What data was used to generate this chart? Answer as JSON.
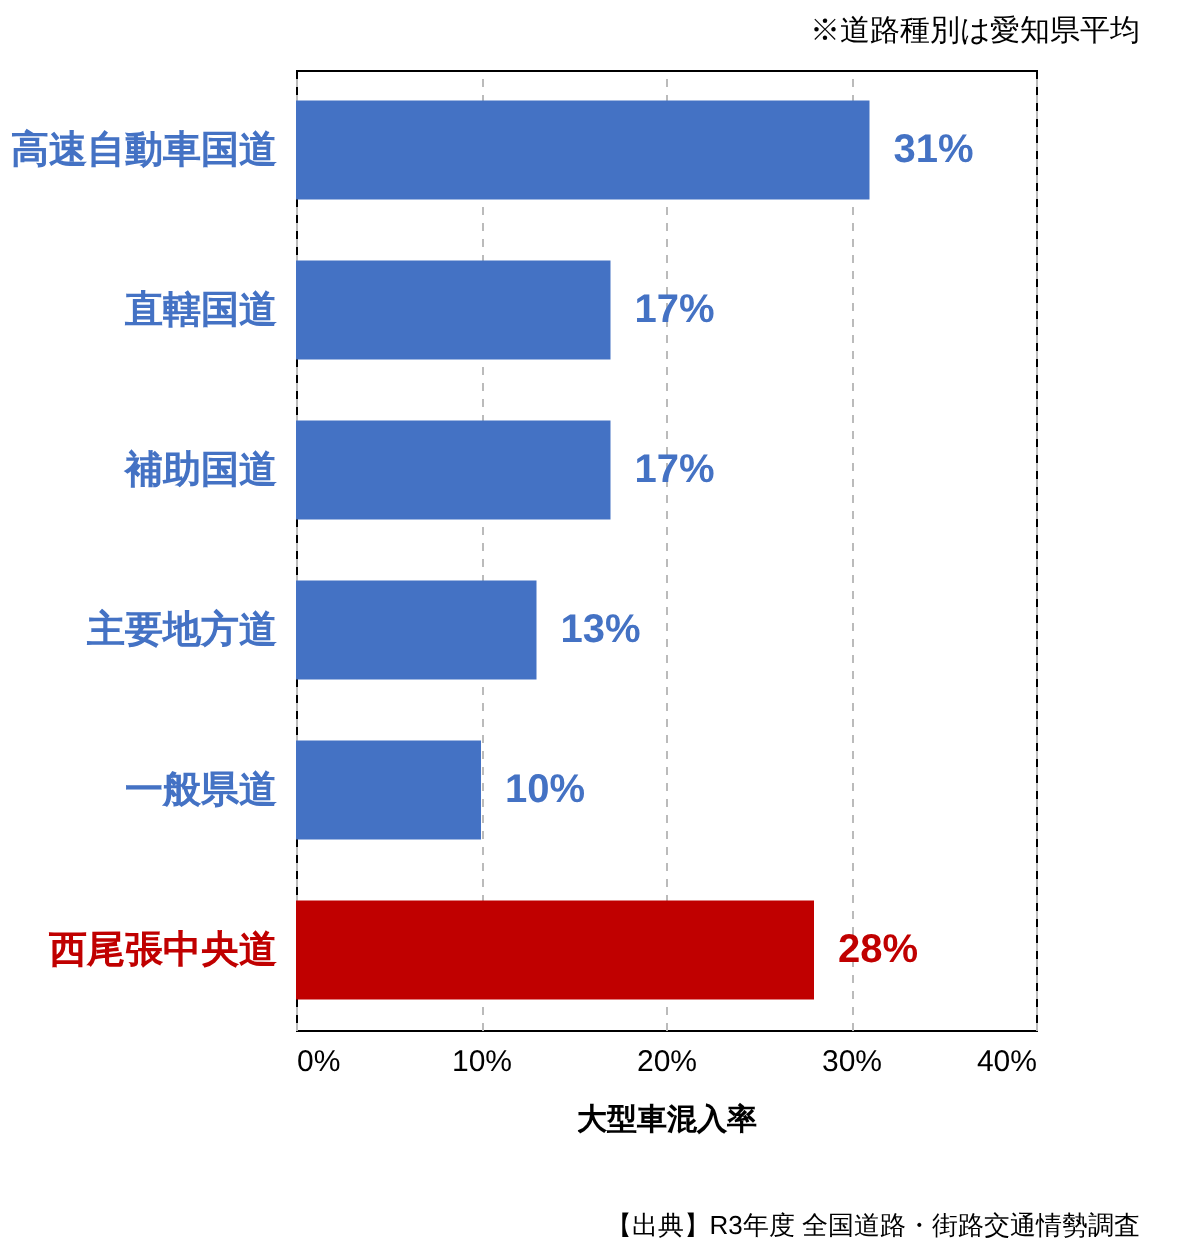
{
  "chart_data": {
    "type": "bar",
    "orientation": "horizontal",
    "xlabel": "大型車混入率",
    "categories": [
      "高速自動車国道",
      "直轄国道",
      "補助国道",
      "主要地方道",
      "一般県道",
      "西尾張中央道"
    ],
    "values": [
      31,
      17,
      17,
      13,
      10,
      28
    ],
    "value_labels": [
      "31%",
      "17%",
      "17%",
      "13%",
      "10%",
      "28%"
    ],
    "colors": [
      "#4472c4",
      "#4472c4",
      "#4472c4",
      "#4472c4",
      "#4472c4",
      "#c00000"
    ],
    "xlim": [
      0,
      40
    ],
    "xticks": [
      {
        "value": 0,
        "label": "0%"
      },
      {
        "value": 10,
        "label": "10%"
      },
      {
        "value": 20,
        "label": "20%"
      },
      {
        "value": 30,
        "label": "30%"
      },
      {
        "value": 40,
        "label": "40%"
      }
    ],
    "grid": "x",
    "annotations": [
      "※道路種別は愛知県平均",
      "【出典】R3年度 全国道路・街路交通情勢調査"
    ]
  }
}
